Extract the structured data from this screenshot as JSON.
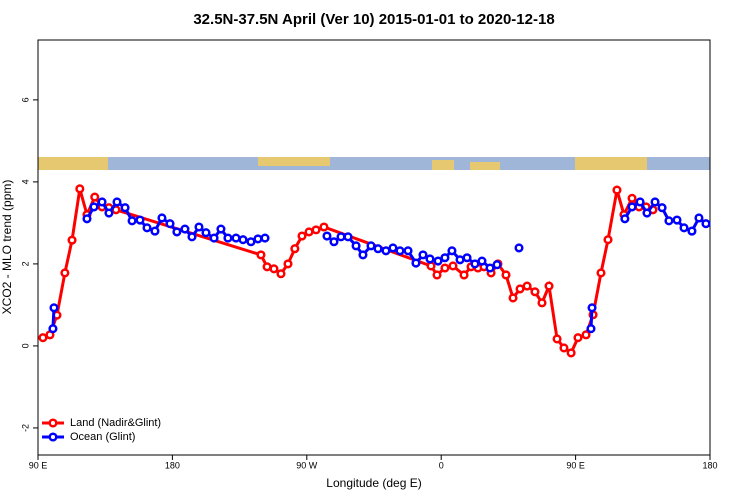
{
  "chart_data": {
    "type": "line",
    "title": "32.5N-37.5N April (Ver 10)   2015-01-01 to 2020-12-18",
    "xlabel": "Longitude (deg E)",
    "ylabel": "XCO2 - MLO trend (ppm)",
    "xlim": [
      90,
      540
    ],
    "ylim": [
      -2.66,
      7.46
    ],
    "xticks": [
      {
        "value": 90,
        "label": "90 E"
      },
      {
        "value": 180,
        "label": "180"
      },
      {
        "value": 270,
        "label": "90 W"
      },
      {
        "value": 360,
        "label": "0"
      },
      {
        "value": 450,
        "label": "90 E"
      },
      {
        "value": 540,
        "label": "180"
      }
    ],
    "yticks": [
      -2,
      0,
      2,
      4,
      6
    ],
    "legend": "bottom-left",
    "series": [
      {
        "name": "Land (Nadir&Glint)",
        "color": "#ff0000",
        "x": [
          93.3,
          98,
          102.7,
          108,
          112.8,
          118,
          122.8,
          128,
          132.9,
          137.5,
          142.2,
          239.3,
          243.4,
          248,
          252.7,
          257.4,
          262,
          266.8,
          271.5,
          276.2,
          281.5,
          353.2,
          357.2,
          362.5,
          367.9,
          375.3,
          380,
          384.6,
          388.7,
          393.4,
          398,
          403.4,
          408.1,
          412.8,
          417.5,
          422.8,
          427.5,
          432.2,
          437.6,
          442.2,
          447,
          451.6,
          457,
          461.7,
          467,
          471.7,
          477.7,
          482.4,
          487.8,
          492.5,
          497.2,
          501.8
        ],
        "values": [
          0.2,
          0.27,
          0.75,
          1.78,
          2.58,
          3.83,
          3.2,
          3.63,
          3.39,
          3.37,
          3.32,
          2.22,
          1.93,
          1.88,
          1.76,
          2.0,
          2.37,
          2.68,
          2.78,
          2.83,
          2.9,
          1.95,
          1.73,
          1.9,
          1.95,
          1.73,
          1.93,
          1.9,
          1.93,
          1.78,
          2.0,
          1.73,
          1.17,
          1.39,
          1.46,
          1.32,
          1.05,
          1.46,
          0.17,
          -0.05,
          -0.17,
          0.2,
          0.27,
          0.76,
          1.78,
          2.59,
          3.8,
          3.2,
          3.6,
          3.39,
          3.39,
          3.32
        ]
      },
      {
        "name": "Ocean (Glint)",
        "color": "#0000ff",
        "x": [
          100,
          100.7,
          110,
          122.8,
          127.5,
          132.9,
          137.5,
          142.9,
          148.3,
          153,
          158.3,
          163,
          168.3,
          173,
          178.4,
          183,
          188.4,
          193.1,
          197.8,
          202.5,
          207.9,
          212.5,
          217.2,
          222.6,
          227.3,
          232.6,
          237.3,
          242,
          260,
          283.5,
          288.2,
          292.9,
          297.6,
          303,
          307.6,
          313,
          317.7,
          323,
          327.7,
          332.4,
          337.8,
          343.1,
          347.8,
          352.5,
          357.9,
          362.5,
          367.2,
          372.6,
          377.3,
          382.6,
          387.3,
          392.7,
          397.4,
          405,
          412.1,
          440,
          460.3,
          461,
          470,
          483,
          487.8,
          493.2,
          497.8,
          503.2,
          507.9,
          512.5,
          517.9,
          522.6,
          527.9,
          532.6,
          537.3
        ],
        "values": [
          0.42,
          0.93,
          null,
          3.1,
          3.39,
          3.51,
          3.24,
          3.51,
          3.37,
          3.05,
          3.07,
          2.88,
          2.8,
          3.12,
          2.98,
          2.78,
          2.85,
          2.66,
          2.9,
          2.76,
          2.63,
          2.85,
          2.63,
          2.63,
          2.59,
          2.54,
          2.61,
          2.63,
          null,
          2.68,
          2.54,
          2.66,
          2.66,
          2.44,
          2.22,
          2.44,
          2.37,
          2.32,
          2.39,
          2.32,
          2.32,
          2.02,
          2.22,
          2.12,
          2.07,
          2.15,
          2.32,
          2.1,
          2.15,
          2.0,
          2.07,
          1.9,
          1.98,
          null,
          2.39,
          null,
          0.42,
          0.93,
          null,
          3.1,
          3.39,
          3.51,
          3.24,
          3.51,
          3.37,
          3.05,
          3.07,
          2.88,
          2.8,
          3.12,
          2.98
        ]
      }
    ]
  }
}
